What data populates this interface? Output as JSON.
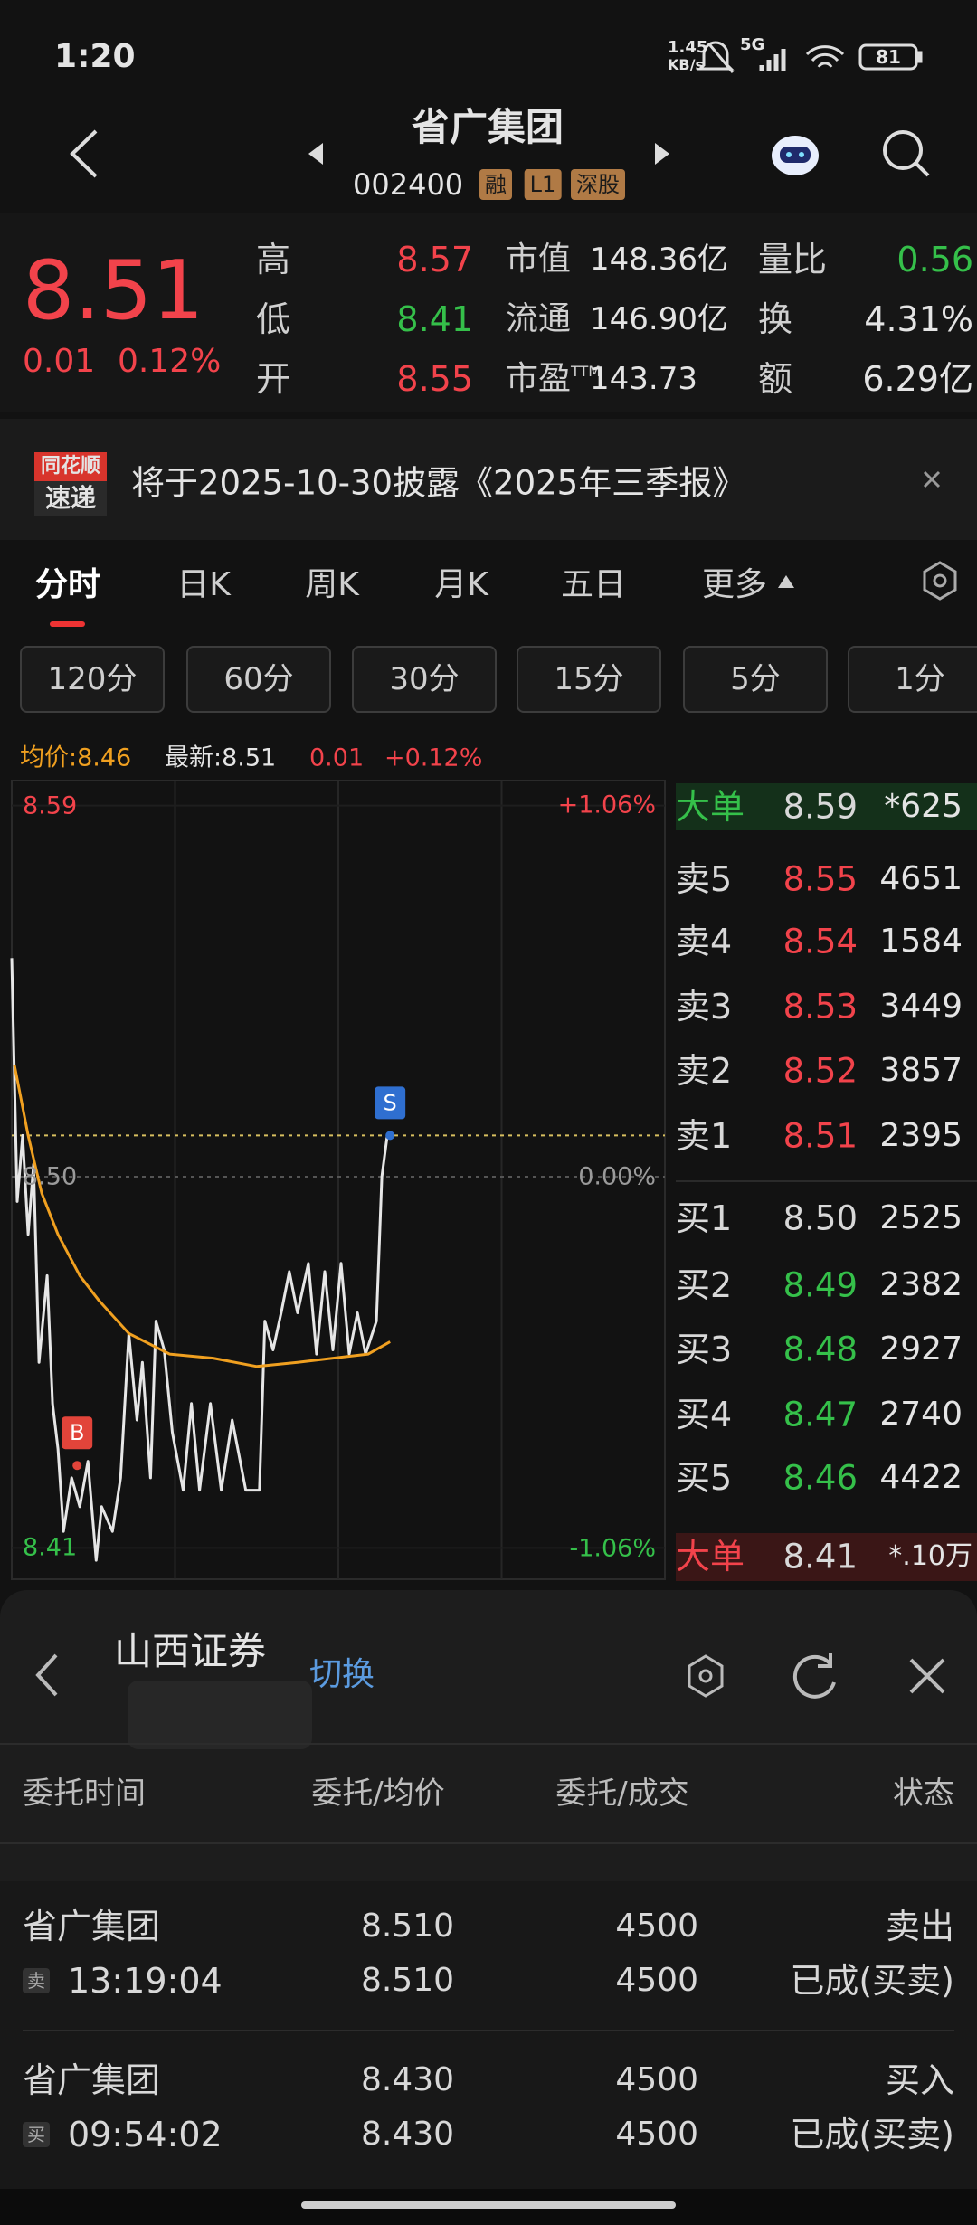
{
  "status_bar": {
    "time": "1:20",
    "speed": "1.45",
    "speed_unit": "KB/s",
    "network": "5G",
    "battery": "81"
  },
  "header": {
    "title": "省广集团",
    "code": "002400",
    "badges": [
      "融",
      "L1",
      "深股"
    ]
  },
  "quote": {
    "price": "8.51",
    "change": "0.01",
    "change_pct": "0.12%",
    "stats": [
      [
        {
          "label": "高",
          "value": "8.57"
        },
        {
          "label": "市值",
          "value": "148.36亿"
        },
        {
          "label": "量比",
          "value": "0.56"
        }
      ],
      [
        {
          "label": "低",
          "value": "8.41"
        },
        {
          "label": "流通",
          "value": "146.90亿"
        },
        {
          "label": "换",
          "value": "4.31%"
        }
      ],
      [
        {
          "label": "开",
          "value": "8.55"
        },
        {
          "label": "市盈",
          "sup": "TTM",
          "value": "143.73"
        },
        {
          "label": "额",
          "value": "6.29亿"
        }
      ]
    ]
  },
  "notice": {
    "brand_top": "同花顺",
    "brand_bottom": "速递",
    "text": "将于2025-10-30披露《2025年三季报》"
  },
  "tabs": [
    "分时",
    "日K",
    "周K",
    "月K",
    "五日",
    "更多"
  ],
  "intervals": [
    "120分",
    "60分",
    "30分",
    "15分",
    "5分",
    "1分"
  ],
  "chart_data": {
    "type": "line",
    "legend": [
      "均价:8.46",
      "最新:8.51",
      "0.01",
      "+0.12%"
    ],
    "xlim": [
      0,
      240
    ],
    "xticks": [
      60,
      120,
      180
    ],
    "ylim": [
      8.4,
      8.6
    ],
    "yticks": [
      8.59,
      {
        "value": 8.5,
        "label": "8.50"
      },
      8.41
    ],
    "y2lim": [
      -1.176,
      1.176
    ],
    "y2ticks": [
      {
        "value": 1.06,
        "label": "+1.06%"
      },
      {
        "value": 0,
        "label": "0.00%"
      },
      {
        "value": -1.06,
        "label": "-1.06%"
      }
    ],
    "series": [
      {
        "color": "#e6e6e6",
        "x": [
          0,
          2,
          4,
          6,
          8,
          10,
          13,
          15,
          17,
          19,
          22,
          25,
          28,
          31,
          33,
          37,
          40,
          43,
          46,
          48,
          51,
          53,
          56,
          59,
          63,
          66,
          69,
          73,
          77,
          81,
          86,
          91,
          93,
          96,
          99,
          102,
          105,
          109,
          112,
          115,
          118,
          121,
          124,
          127,
          130,
          134,
          136,
          138,
          139
        ],
        "values": [
          8.553,
          8.494,
          8.51,
          8.486,
          8.503,
          8.455,
          8.476,
          8.445,
          8.434,
          8.414,
          8.427,
          8.42,
          8.431,
          8.407,
          8.42,
          8.414,
          8.427,
          8.462,
          8.441,
          8.455,
          8.427,
          8.465,
          8.458,
          8.438,
          8.424,
          8.445,
          8.424,
          8.445,
          8.424,
          8.441,
          8.424,
          8.424,
          8.465,
          8.458,
          8.467,
          8.477,
          8.467,
          8.479,
          8.457,
          8.477,
          8.458,
          8.479,
          8.457,
          8.467,
          8.457,
          8.465,
          8.5,
          8.51,
          8.51
        ]
      },
      {
        "color": "#f0a020",
        "x": [
          1,
          6,
          11,
          17,
          25,
          32,
          43,
          58,
          74,
          90,
          105,
          131,
          139
        ],
        "values": [
          8.527,
          8.51,
          8.496,
          8.486,
          8.476,
          8.47,
          8.462,
          8.457,
          8.456,
          8.454,
          8.455,
          8.457,
          8.46
        ]
      }
    ],
    "markers": [
      {
        "label": "B",
        "x": 24,
        "value": 8.43,
        "color": "#e2443a"
      },
      {
        "label": "S",
        "x": 139,
        "value": 8.51,
        "color": "#2f6fd0"
      }
    ]
  },
  "order_book": [
    {
      "label": "大单",
      "price": "8.59",
      "volume": "*625"
    },
    {
      "label": "卖5",
      "price": "8.55",
      "volume": "4651"
    },
    {
      "label": "卖4",
      "price": "8.54",
      "volume": "1584"
    },
    {
      "label": "卖3",
      "price": "8.53",
      "volume": "3449"
    },
    {
      "label": "卖2",
      "price": "8.52",
      "volume": "3857"
    },
    {
      "label": "卖1",
      "price": "8.51",
      "volume": "2395"
    },
    {
      "label": "买1",
      "price": "8.50",
      "volume": "2525"
    },
    {
      "label": "买2",
      "price": "8.49",
      "volume": "2382"
    },
    {
      "label": "买3",
      "price": "8.48",
      "volume": "2927"
    },
    {
      "label": "买4",
      "price": "8.47",
      "volume": "2740"
    },
    {
      "label": "买5",
      "price": "8.46",
      "volume": "4422"
    },
    {
      "label": "大单",
      "price": "8.41",
      "volume": "*.10万"
    }
  ],
  "account": {
    "broker": "山西证券",
    "switch": "切换"
  },
  "orders": {
    "columns": [
      "委托时间",
      "委托/均价",
      "委托/成交",
      "状态"
    ],
    "rows": [
      {
        "name": "省广集团",
        "side": "卖",
        "time": "13:19:04",
        "price": "8.510",
        "avg": "8.510",
        "qty": "4500",
        "filled": "4500",
        "action": "卖出",
        "status": "已成(买卖)"
      },
      {
        "name": "省广集团",
        "side": "买",
        "time": "09:54:02",
        "price": "8.430",
        "avg": "8.430",
        "qty": "4500",
        "filled": "4500",
        "action": "买入",
        "status": "已成(买卖)"
      }
    ]
  }
}
